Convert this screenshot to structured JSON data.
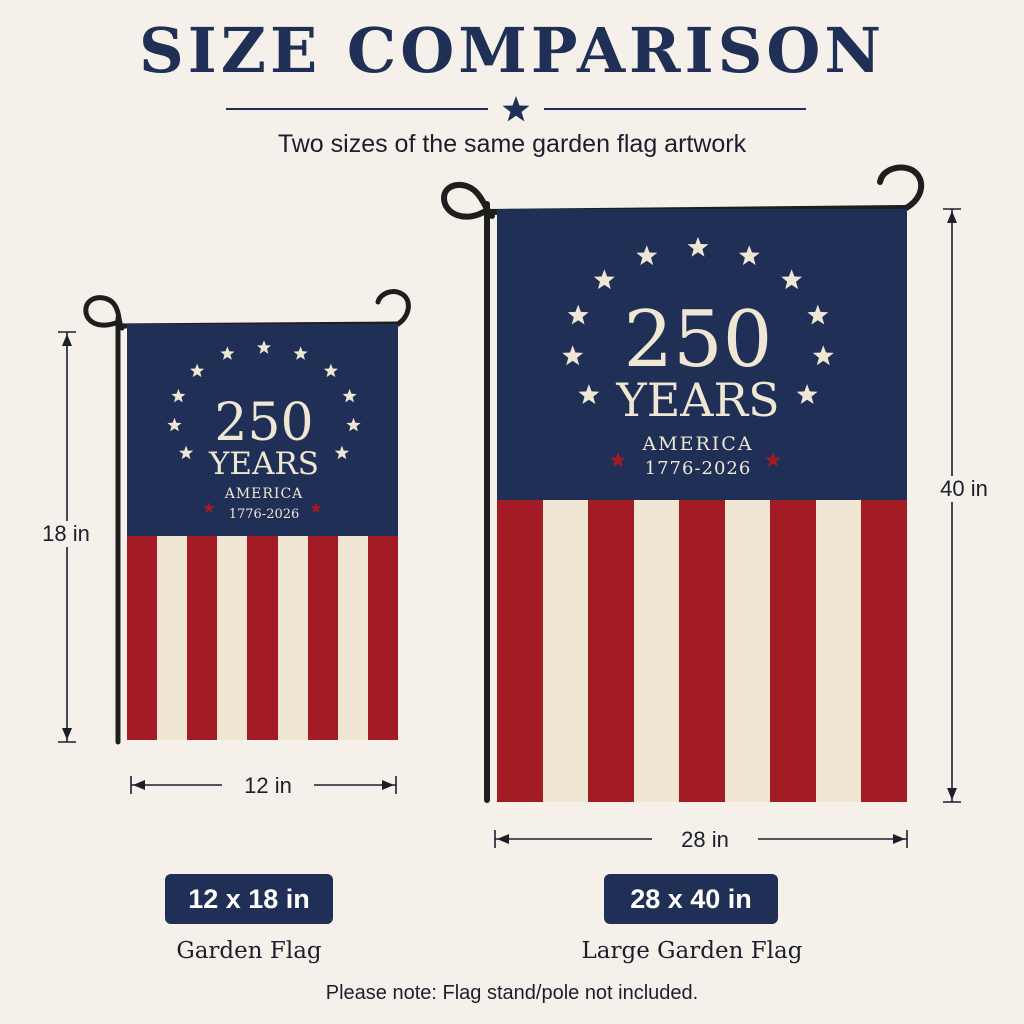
{
  "header": {
    "title": "SIZE COMPARISON",
    "subtitle": "Two sizes of the same garden flag artwork"
  },
  "flag_artwork": {
    "number": "250",
    "word": "YEARS",
    "country": "AMERICA",
    "dates": "1776-2026",
    "colors": {
      "navy": "#1f2f55",
      "red": "#a31c25",
      "cream": "#efe6d4",
      "pole": "#1e1e1e"
    }
  },
  "small_flag": {
    "height_label": "18 in",
    "width_label": "12 in",
    "size_badge": "12 x 18 in",
    "caption": "Garden Flag"
  },
  "large_flag": {
    "height_label": "40 in",
    "width_label": "28 in",
    "size_badge": "28 x 40 in",
    "caption": "Large Garden Flag"
  },
  "footer": {
    "note": "Please note: Flag stand/pole not included."
  }
}
